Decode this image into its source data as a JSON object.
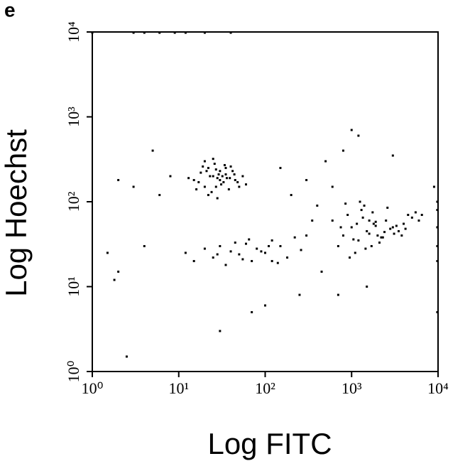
{
  "panel_label": "e",
  "chart_data": {
    "type": "scatter",
    "x_label": "Log FITC",
    "y_label": "Log Hoechst",
    "log_x": true,
    "log_y": true,
    "color": "#000000",
    "xlim": [
      1,
      10000
    ],
    "ylim": [
      1,
      10000
    ],
    "xticks": [
      {
        "value": 1,
        "label": "10⁰"
      },
      {
        "value": 10,
        "label": "10¹"
      },
      {
        "value": 100,
        "label": "10²"
      },
      {
        "value": 1000,
        "label": "10³"
      },
      {
        "value": 10000,
        "label": "10⁴"
      }
    ],
    "yticks": [
      {
        "value": 1,
        "label": "10⁰"
      },
      {
        "value": 10,
        "label": "10¹"
      },
      {
        "value": 100,
        "label": "10²"
      },
      {
        "value": 1000,
        "label": "10³"
      },
      {
        "value": 10000,
        "label": "10⁴"
      }
    ],
    "x": [
      15,
      18,
      20,
      22,
      25,
      28,
      30,
      33,
      35,
      40,
      45,
      50,
      55,
      20,
      24,
      27,
      31,
      36,
      17,
      26,
      29,
      38,
      42,
      22,
      19,
      32,
      48,
      25,
      28,
      35,
      13,
      16,
      60,
      44,
      21,
      30,
      34,
      27,
      23,
      39,
      800,
      1000,
      1200,
      1500,
      1800,
      2000,
      2500,
      3000,
      3500,
      4000,
      5000,
      6000,
      700,
      900,
      1100,
      1300,
      1600,
      2200,
      2800,
      3300,
      4500,
      1400,
      1700,
      1900,
      2400,
      600,
      1050,
      1250,
      3800,
      5500,
      950,
      1150,
      1350,
      2100,
      2600,
      3100,
      750,
      1450,
      1750,
      6500,
      4200,
      850,
      2300,
      1600,
      1900,
      12,
      15,
      20,
      25,
      30,
      40,
      50,
      60,
      70,
      80,
      100,
      120,
      150,
      180,
      220,
      260,
      35,
      45,
      55,
      90,
      110,
      65,
      28,
      140,
      300,
      2,
      3,
      1.5,
      4,
      6,
      8,
      150,
      300,
      500,
      800,
      200,
      400,
      1000,
      3000,
      600,
      250,
      100,
      70,
      2.5,
      1.8,
      5,
      350,
      450,
      1500,
      700,
      120,
      30,
      2,
      1200,
      9000,
      1,
      3,
      6,
      12,
      20,
      40,
      9,
      4,
      9800,
      9800,
      9800,
      9800,
      9800,
      9800
    ],
    "values": [
      180,
      220,
      150,
      250,
      200,
      190,
      230,
      170,
      210,
      260,
      180,
      150,
      200,
      300,
      130,
      240,
      160,
      190,
      170,
      280,
      210,
      140,
      230,
      120,
      260,
      200,
      170,
      320,
      110,
      250,
      190,
      140,
      160,
      210,
      230,
      180,
      270,
      150,
      200,
      190,
      40,
      50,
      35,
      45,
      55,
      40,
      60,
      50,
      45,
      55,
      65,
      60,
      30,
      70,
      25,
      80,
      42,
      38,
      48,
      52,
      70,
      90,
      30,
      58,
      44,
      60,
      36,
      100,
      40,
      75,
      22,
      55,
      65,
      33,
      85,
      42,
      50,
      28,
      75,
      70,
      48,
      95,
      38,
      60,
      52,
      25,
      20,
      28,
      22,
      30,
      26,
      24,
      32,
      20,
      28,
      25,
      35,
      30,
      22,
      38,
      27,
      18,
      33,
      21,
      26,
      30,
      36,
      24,
      19,
      40,
      180,
      150,
      25,
      30,
      120,
      200,
      250,
      180,
      300,
      400,
      120,
      90,
      700,
      350,
      150,
      8,
      6,
      5,
      1.5,
      12,
      400,
      60,
      15,
      10,
      8,
      20,
      3,
      15,
      600,
      150,
      9800,
      9800,
      9800,
      9800,
      9800,
      9800,
      9800,
      9800,
      50,
      30,
      20,
      80,
      5,
      100
    ]
  }
}
